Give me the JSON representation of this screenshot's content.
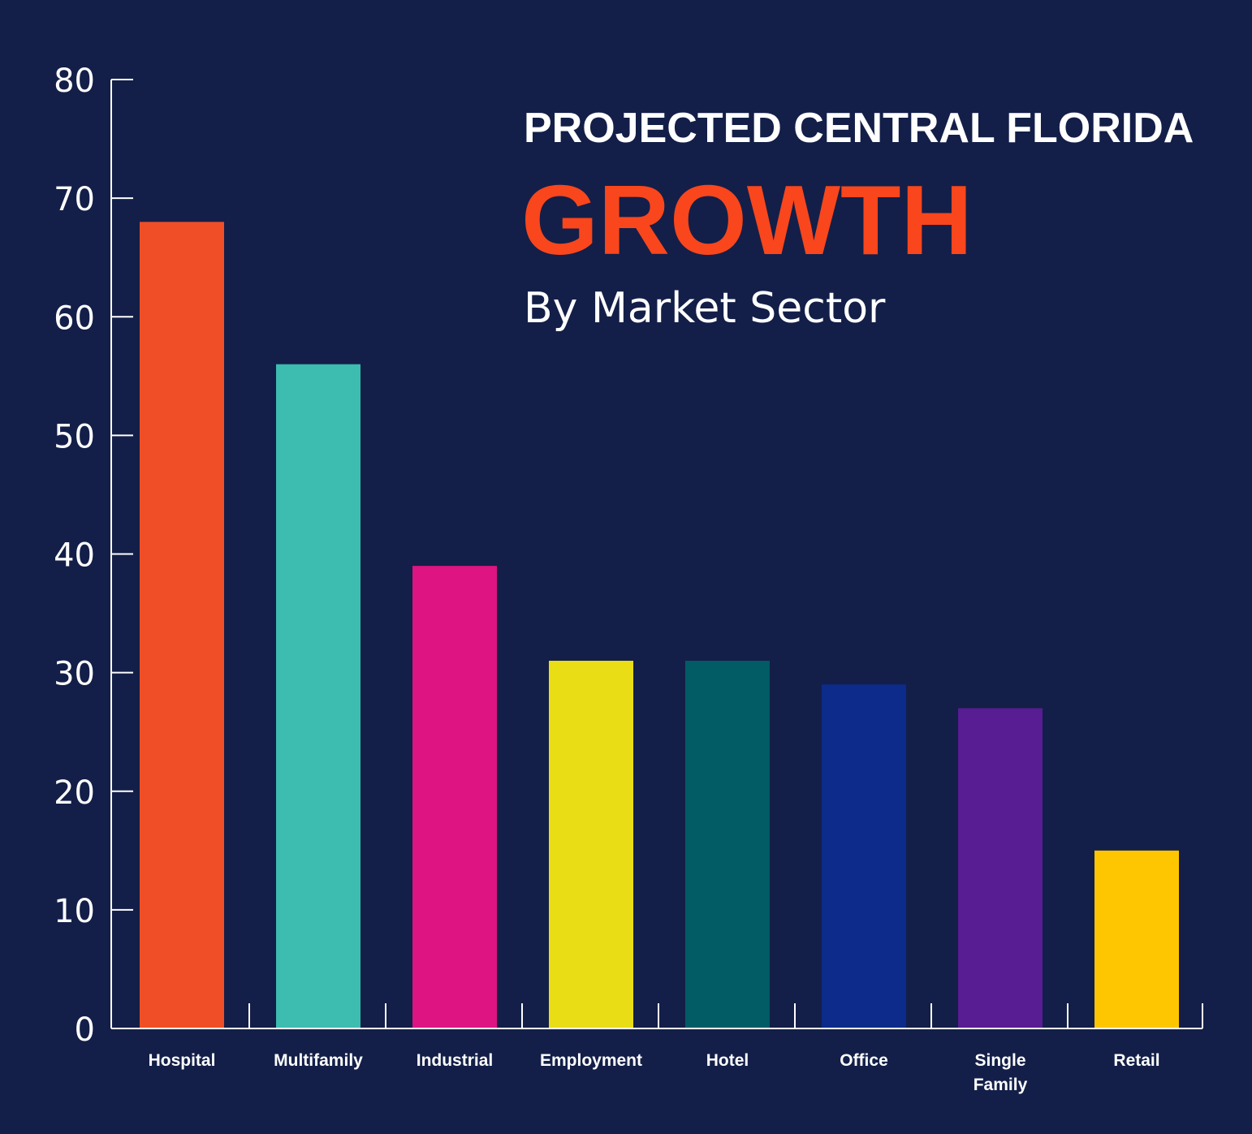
{
  "chart_data": {
    "type": "bar",
    "title_line1": "PROJECTED CENTRAL FLORIDA",
    "title_line2": "GROWTH",
    "subtitle": "By Market Sector",
    "categories": [
      "Hospital",
      "Multifamily",
      "Industrial",
      "Employment",
      "Hotel",
      "Office",
      "Single Family",
      "Retail"
    ],
    "values": [
      68,
      56,
      39,
      31,
      31,
      29,
      27,
      15
    ],
    "colors": [
      "#f04e26",
      "#3dbcb0",
      "#dd1482",
      "#e9dd16",
      "#015c66",
      "#0c2b8a",
      "#581c93",
      "#fec600"
    ],
    "ylim": [
      0,
      80
    ],
    "yticks": [
      0,
      10,
      20,
      30,
      40,
      50,
      60,
      70,
      80
    ],
    "grid": false,
    "legend": "none",
    "title_color": "#f9461c",
    "background": "#131f48"
  }
}
